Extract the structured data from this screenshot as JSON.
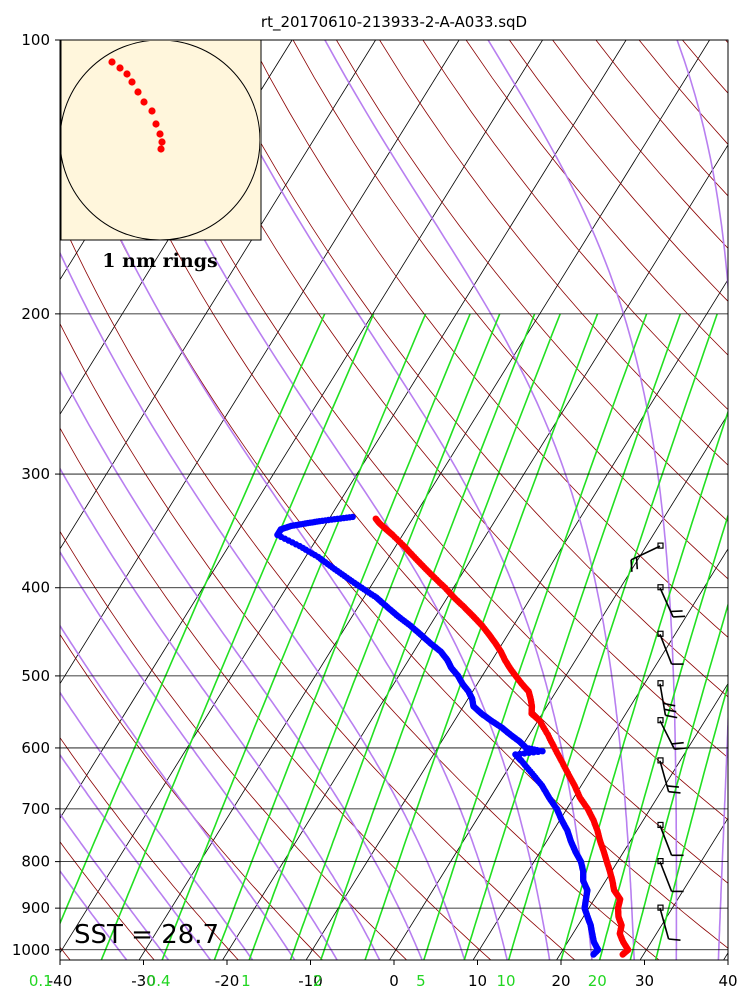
{
  "chart_data": {
    "type": "scatter",
    "title": "rt_20170610-213933-2-A-A033.sqD",
    "sst_label": "SST = 28.7",
    "inset_label": "1 nm rings",
    "xlim": [
      -40,
      40
    ],
    "ylim": [
      1050,
      100
    ],
    "y_scale": "log",
    "x_ticks": [
      -40,
      -30,
      -20,
      -10,
      0,
      10,
      20,
      30,
      40
    ],
    "x_tick_labels": [
      "-40",
      "-30",
      "-20",
      "-10",
      "0",
      "10",
      "20",
      "30",
      "40"
    ],
    "y_ticks": [
      100,
      200,
      300,
      400,
      500,
      600,
      700,
      800,
      900,
      1000
    ],
    "y_tick_labels": [
      "100",
      "200",
      "300",
      "400",
      "500",
      "600",
      "700",
      "800",
      "900",
      "1000"
    ],
    "mixing_ratio_labels": [
      {
        "text": "0.1",
        "value": 0.1
      },
      {
        "text": "0.4",
        "value": 0.4
      },
      {
        "text": "1",
        "value": 1
      },
      {
        "text": "2",
        "value": 2
      },
      {
        "text": "5",
        "value": 5
      },
      {
        "text": "10",
        "value": 10
      },
      {
        "text": "20",
        "value": 20
      }
    ],
    "colors": {
      "temperature": "#ff0000",
      "dewpoint": "#0000ff",
      "isotherm": "#000000",
      "dry_adiabat": "#8b0000",
      "moist_adiabat": "#b87ff0",
      "mixing_ratio": "#22e022",
      "inset_background": "#fff6dc"
    },
    "series": [
      {
        "name": "Temperature",
        "pressure": [
          1012,
          1000,
          980,
          960,
          940,
          920,
          900,
          880,
          860,
          840,
          820,
          800,
          780,
          760,
          740,
          720,
          700,
          680,
          660,
          640,
          620,
          600,
          580,
          560,
          550,
          540,
          530,
          520,
          510,
          500,
          490,
          480,
          470,
          460,
          450,
          440,
          430,
          420,
          410,
          400,
          390,
          380,
          370,
          360,
          350,
          345,
          340,
          335
        ],
        "temperature": [
          27.5,
          27.8,
          26.6,
          25.6,
          25.2,
          24.2,
          23.5,
          23.1,
          21.7,
          20.8,
          19.8,
          18.7,
          17.6,
          16.4,
          15.3,
          14.0,
          12.5,
          10.7,
          9.2,
          7.5,
          5.8,
          4.0,
          2.2,
          0.2,
          -1.3,
          -1.8,
          -2.5,
          -3.3,
          -4.7,
          -6.0,
          -7.3,
          -8.5,
          -9.6,
          -10.9,
          -12.3,
          -13.8,
          -15.5,
          -17.3,
          -19.2,
          -21.0,
          -23.0,
          -25.0,
          -27.0,
          -29.0,
          -31.2,
          -32.4,
          -33.6,
          -34.6
        ]
      },
      {
        "name": "Dewpoint",
        "pressure": [
          1012,
          1000,
          980,
          960,
          940,
          920,
          900,
          880,
          860,
          840,
          820,
          800,
          780,
          760,
          740,
          720,
          700,
          680,
          660,
          640,
          620,
          610,
          605,
          600,
          590,
          580,
          570,
          560,
          550,
          540,
          530,
          520,
          510,
          500,
          490,
          480,
          470,
          460,
          450,
          440,
          430,
          420,
          410,
          400,
          390,
          380,
          370,
          360,
          350,
          345,
          342,
          340,
          338,
          336,
          334
        ],
        "temperature": [
          24.0,
          24.2,
          23.1,
          22.3,
          21.5,
          20.5,
          19.5,
          19.0,
          18.5,
          17.3,
          16.6,
          15.6,
          14.2,
          12.9,
          11.7,
          10.2,
          8.8,
          7.0,
          5.3,
          3.2,
          1.0,
          -0.2,
          2.8,
          0.6,
          -0.7,
          -2.3,
          -3.8,
          -5.6,
          -7.3,
          -8.8,
          -9.5,
          -10.5,
          -11.8,
          -12.9,
          -14.3,
          -15.4,
          -16.8,
          -18.7,
          -20.5,
          -22.4,
          -24.5,
          -26.5,
          -28.5,
          -31.0,
          -33.5,
          -36.0,
          -38.5,
          -41.5,
          -45.0,
          -45.0,
          -44.0,
          -42.5,
          -41.0,
          -39.0,
          -37.0
        ]
      }
    ],
    "winds": [
      {
        "pressure": 360,
        "speed_kt": 15
      },
      {
        "pressure": 400,
        "speed_kt": 20
      },
      {
        "pressure": 450,
        "speed_kt": 10
      },
      {
        "pressure": 510,
        "speed_kt": 25
      },
      {
        "pressure": 560,
        "speed_kt": 20
      },
      {
        "pressure": 620,
        "speed_kt": 15
      },
      {
        "pressure": 730,
        "speed_kt": 10
      },
      {
        "pressure": 800,
        "speed_kt": 10
      },
      {
        "pressure": 900,
        "speed_kt": 10
      }
    ],
    "inset_track": [
      [
        -0.48,
        -0.78
      ],
      [
        -0.4,
        -0.72
      ],
      [
        -0.33,
        -0.66
      ],
      [
        -0.28,
        -0.58
      ],
      [
        -0.22,
        -0.48
      ],
      [
        -0.16,
        -0.38
      ],
      [
        -0.08,
        -0.29
      ],
      [
        -0.04,
        -0.16
      ],
      [
        0.0,
        -0.06
      ],
      [
        0.02,
        0.02
      ],
      [
        0.01,
        0.09
      ]
    ]
  }
}
